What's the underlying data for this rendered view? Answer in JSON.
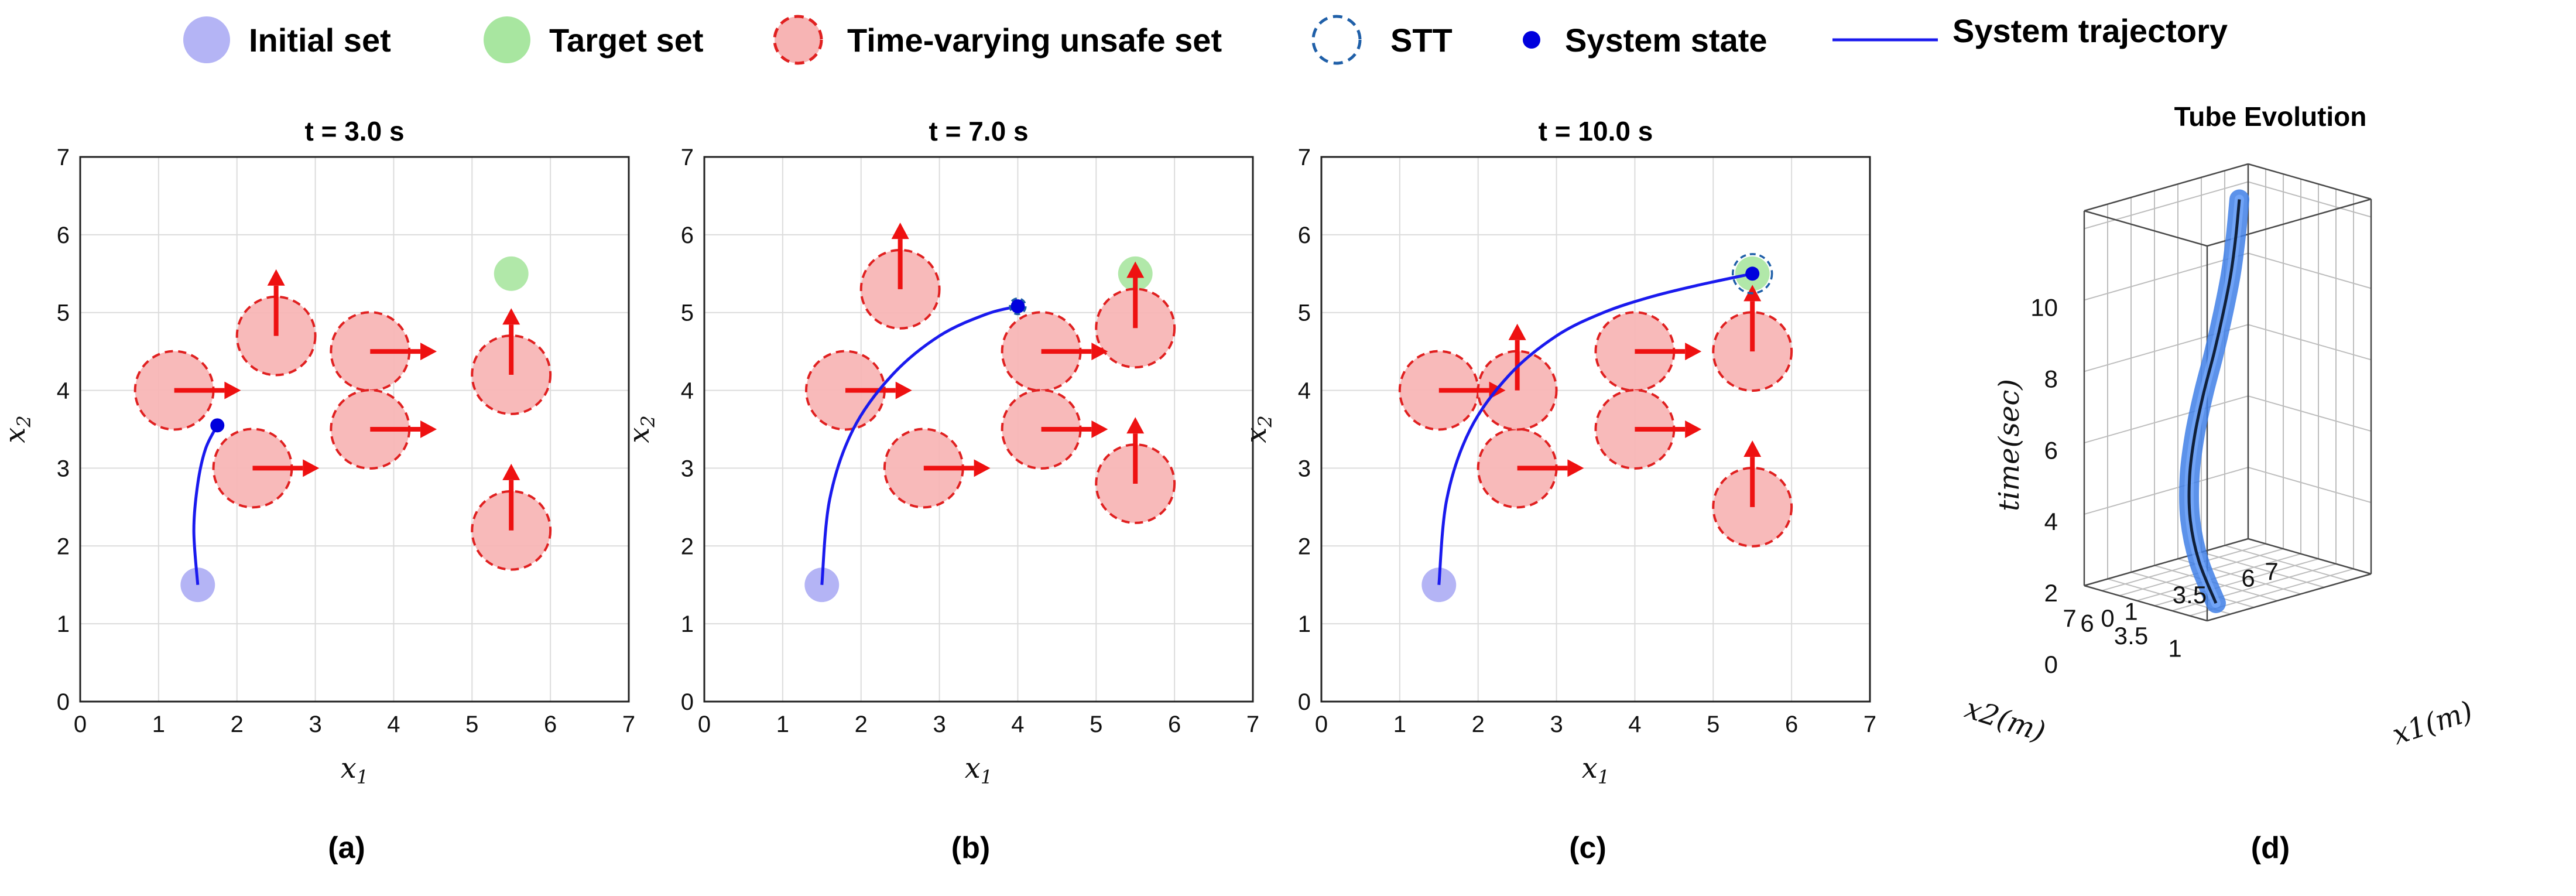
{
  "legend": [
    {
      "key": "initial",
      "label": "Initial set"
    },
    {
      "key": "target",
      "label": "Target set"
    },
    {
      "key": "unsafe",
      "label": "Time-varying unsafe set"
    },
    {
      "key": "stt",
      "label": "STT"
    },
    {
      "key": "state",
      "label": "System state"
    },
    {
      "key": "traj",
      "label": "System trajectory"
    }
  ],
  "colors": {
    "initial": "#b4b4f5",
    "target": "#a8e6a0",
    "unsafe_fill": "#f7b4b4",
    "unsafe_edge": "#e02020",
    "arrow": "#ee1111",
    "stt": "#1f5fa8",
    "state": "#0000dd",
    "traj": "#1a1aee",
    "tube": "#3f7fe6",
    "tube_core": "#10203a"
  },
  "chart_data": [
    {
      "type": "scatter",
      "panel": "a",
      "caption": "(a)",
      "title": "t = 3.0 s",
      "xlabel": "x1",
      "ylabel": "x2",
      "xlim": [
        0,
        7
      ],
      "ylim": [
        0,
        7
      ],
      "xticks": [
        "0",
        "1",
        "2",
        "3",
        "4",
        "5",
        "6",
        "7"
      ],
      "yticks": [
        "0",
        "1",
        "2",
        "3",
        "4",
        "5",
        "6",
        "7"
      ],
      "initial": {
        "x": 1.5,
        "y": 1.5,
        "r": 0.22
      },
      "target": {
        "x": 5.5,
        "y": 5.5,
        "r": 0.22
      },
      "obstacles": [
        {
          "x": 1.2,
          "y": 4.0,
          "r": 0.5,
          "dir": "right"
        },
        {
          "x": 2.2,
          "y": 3.0,
          "r": 0.5,
          "dir": "right"
        },
        {
          "x": 2.5,
          "y": 4.7,
          "r": 0.5,
          "dir": "up"
        },
        {
          "x": 3.7,
          "y": 4.5,
          "r": 0.5,
          "dir": "right"
        },
        {
          "x": 3.7,
          "y": 3.5,
          "r": 0.5,
          "dir": "right"
        },
        {
          "x": 5.5,
          "y": 4.2,
          "r": 0.5,
          "dir": "up"
        },
        {
          "x": 5.5,
          "y": 2.2,
          "r": 0.5,
          "dir": "up"
        }
      ],
      "trajectory": {
        "x": [
          1.5,
          1.45,
          1.5,
          1.6,
          1.75
        ],
        "y": [
          1.5,
          2.2,
          2.8,
          3.25,
          3.55
        ]
      },
      "state": {
        "x": 1.75,
        "y": 3.55
      }
    },
    {
      "type": "scatter",
      "panel": "b",
      "caption": "(b)",
      "title": "t = 7.0 s",
      "xlabel": "x1",
      "ylabel": "x2",
      "xlim": [
        0,
        7
      ],
      "ylim": [
        0,
        7
      ],
      "xticks": [
        "0",
        "1",
        "2",
        "3",
        "4",
        "5",
        "6",
        "7"
      ],
      "yticks": [
        "0",
        "1",
        "2",
        "3",
        "4",
        "5",
        "6",
        "7"
      ],
      "initial": {
        "x": 1.5,
        "y": 1.5,
        "r": 0.22
      },
      "target": {
        "x": 5.5,
        "y": 5.5,
        "r": 0.22
      },
      "obstacles": [
        {
          "x": 1.8,
          "y": 4.0,
          "r": 0.5,
          "dir": "right"
        },
        {
          "x": 2.8,
          "y": 3.0,
          "r": 0.5,
          "dir": "right"
        },
        {
          "x": 2.5,
          "y": 5.3,
          "r": 0.5,
          "dir": "up"
        },
        {
          "x": 4.3,
          "y": 4.5,
          "r": 0.5,
          "dir": "right"
        },
        {
          "x": 4.3,
          "y": 3.5,
          "r": 0.5,
          "dir": "right"
        },
        {
          "x": 5.5,
          "y": 4.8,
          "r": 0.5,
          "dir": "up"
        },
        {
          "x": 5.5,
          "y": 2.8,
          "r": 0.5,
          "dir": "up"
        }
      ],
      "trajectory": {
        "x": [
          1.5,
          1.6,
          1.9,
          2.4,
          3.0,
          3.6,
          4.0
        ],
        "y": [
          1.5,
          2.6,
          3.5,
          4.2,
          4.7,
          4.98,
          5.08
        ]
      },
      "state": {
        "x": 4.0,
        "y": 5.08
      },
      "stt": {
        "x": 4.0,
        "y": 5.08,
        "r": 0.1
      }
    },
    {
      "type": "scatter",
      "panel": "c",
      "caption": "(c)",
      "title": "t = 10.0 s",
      "xlabel": "x1",
      "ylabel": "x2",
      "xlim": [
        0,
        7
      ],
      "ylim": [
        0,
        7
      ],
      "xticks": [
        "0",
        "1",
        "2",
        "3",
        "4",
        "5",
        "6",
        "7"
      ],
      "yticks": [
        "0",
        "1",
        "2",
        "3",
        "4",
        "5",
        "6",
        "7"
      ],
      "initial": {
        "x": 1.5,
        "y": 1.5,
        "r": 0.22
      },
      "target": {
        "x": 5.5,
        "y": 5.5,
        "r": 0.22
      },
      "obstacles": [
        {
          "x": 1.5,
          "y": 4.0,
          "r": 0.5,
          "dir": "right"
        },
        {
          "x": 2.5,
          "y": 3.0,
          "r": 0.5,
          "dir": "right"
        },
        {
          "x": 2.5,
          "y": 4.0,
          "r": 0.5,
          "dir": "up"
        },
        {
          "x": 4.0,
          "y": 4.5,
          "r": 0.5,
          "dir": "right"
        },
        {
          "x": 4.0,
          "y": 3.5,
          "r": 0.5,
          "dir": "right"
        },
        {
          "x": 5.5,
          "y": 4.5,
          "r": 0.5,
          "dir": "up"
        },
        {
          "x": 5.5,
          "y": 2.5,
          "r": 0.5,
          "dir": "up"
        }
      ],
      "trajectory": {
        "x": [
          1.5,
          1.6,
          1.9,
          2.4,
          3.0,
          3.6,
          4.2,
          4.8,
          5.5
        ],
        "y": [
          1.5,
          2.6,
          3.5,
          4.2,
          4.7,
          5.0,
          5.2,
          5.35,
          5.5
        ]
      },
      "state": {
        "x": 5.5,
        "y": 5.5
      },
      "stt": {
        "x": 5.5,
        "y": 5.5,
        "r": 0.25
      }
    },
    {
      "type": "line",
      "panel": "d",
      "caption": "(d)",
      "title": "Tube Evolution",
      "xlabel": "x2(m)",
      "ylabel": "x1(m)",
      "zlabel": "time(sec)",
      "x2_ticks": [
        "1",
        "3.5",
        "6",
        "7"
      ],
      "x1_ticks": [
        "0",
        "1",
        "3.5",
        "6",
        "7"
      ],
      "time_ticks": [
        "0",
        "2",
        "4",
        "6",
        "8",
        "10"
      ],
      "tube": {
        "time": [
          0,
          1,
          2,
          3,
          4,
          5,
          6,
          7,
          8,
          9,
          10
        ],
        "x1": [
          1.5,
          1.6,
          1.9,
          2.4,
          3.0,
          3.6,
          4.2,
          4.7,
          5.1,
          5.35,
          5.5
        ],
        "x2": [
          1.5,
          2.6,
          3.5,
          4.2,
          4.7,
          5.0,
          5.2,
          5.35,
          5.45,
          5.5,
          5.5
        ]
      }
    }
  ]
}
